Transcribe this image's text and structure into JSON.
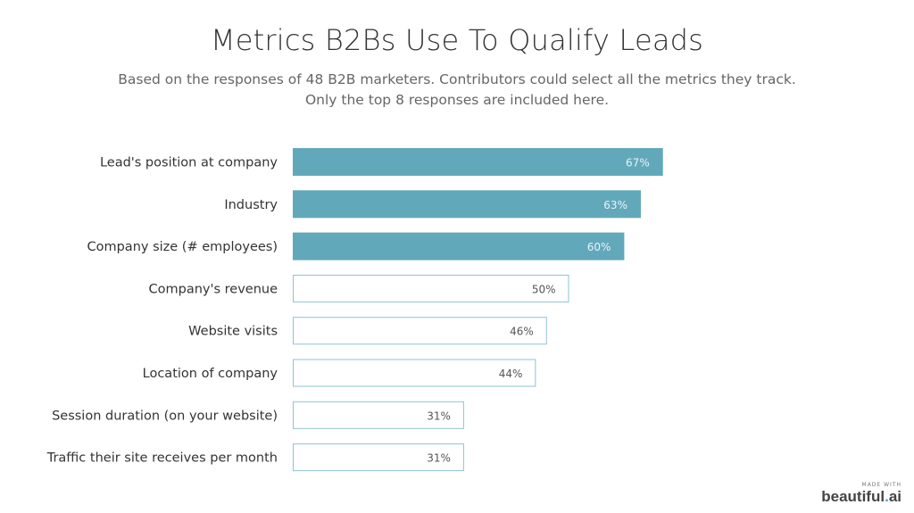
{
  "chart_data": {
    "type": "bar",
    "orientation": "horizontal",
    "title": "Metrics B2Bs Use To Qualify Leads",
    "subtitle": [
      "Based on the responses of 48 B2B marketers. Contributors could select all the metrics they track.",
      "Only the top 8 responses are included here."
    ],
    "categories": [
      "Lead's position at company",
      "Industry",
      "Company size (# employees)",
      "Company's revenue",
      "Website visits",
      "Location of company",
      "Session duration (on your website)",
      "Traffic their site receives per month"
    ],
    "values": [
      67,
      63,
      60,
      50,
      46,
      44,
      31,
      31
    ],
    "data_labels": [
      "67%",
      "63%",
      "60%",
      "50%",
      "46%",
      "44%",
      "31%",
      "31%"
    ],
    "highlighted": [
      true,
      true,
      true,
      false,
      false,
      false,
      false,
      false
    ],
    "xlim": [
      0,
      100
    ],
    "grid": false,
    "colors": {
      "fill": "#62a8bb",
      "outline": "#8ec3d3",
      "label_on_fill": "#e8f3f6",
      "label_plain": "#555555"
    }
  },
  "branding": {
    "made_with": "MADE WITH",
    "brand_main": "beautiful",
    "brand_dot": ".",
    "brand_suffix": "ai"
  }
}
